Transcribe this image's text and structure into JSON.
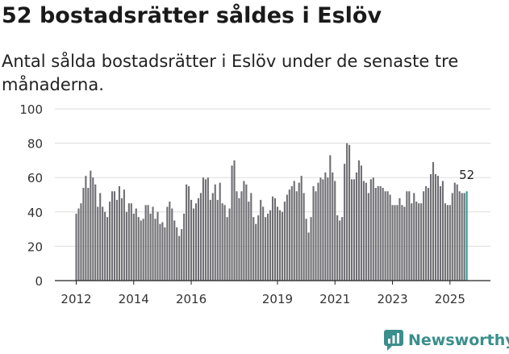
{
  "title": "52 bostadsrätter såldes i Eslöv",
  "subtitle": "Antal sålda bostadsrätter i Eslöv under de senaste tre månaderna.",
  "brand": {
    "name": "Newsworthy",
    "icon": "newsworthy-logo-icon",
    "color": "#3a8f8c"
  },
  "colors": {
    "bar": "#6e6e73",
    "highlight": "#2a9d96",
    "grid": "#dddddd",
    "axis": "#222222"
  },
  "chart_data": {
    "type": "bar",
    "title": "52 bostadsrätter såldes i Eslöv",
    "xlabel": "",
    "ylabel": "",
    "ylim": [
      0,
      100
    ],
    "yticks": [
      0,
      20,
      40,
      60,
      80,
      100
    ],
    "xtick_labels": [
      "2012",
      "2014",
      "2016",
      "2019",
      "2021",
      "2023",
      "2025"
    ],
    "xtick_years": [
      2012,
      2014,
      2016,
      2019,
      2021,
      2023,
      2025
    ],
    "start_year": 2012,
    "start_month": 1,
    "highlight_label": "52",
    "values": [
      39,
      42,
      45,
      54,
      61,
      54,
      64,
      60,
      56,
      43,
      51,
      43,
      40,
      37,
      46,
      52,
      52,
      47,
      55,
      48,
      53,
      40,
      45,
      45,
      39,
      42,
      37,
      35,
      36,
      44,
      44,
      39,
      43,
      36,
      40,
      33,
      34,
      31,
      43,
      46,
      42,
      35,
      31,
      26,
      30,
      39,
      56,
      55,
      47,
      42,
      45,
      48,
      51,
      60,
      59,
      60,
      47,
      51,
      56,
      47,
      57,
      45,
      44,
      37,
      42,
      67,
      70,
      52,
      48,
      52,
      58,
      56,
      46,
      51,
      37,
      33,
      38,
      47,
      43,
      37,
      39,
      41,
      49,
      48,
      43,
      41,
      40,
      46,
      50,
      53,
      55,
      58,
      52,
      57,
      61,
      51,
      36,
      28,
      37,
      55,
      52,
      57,
      60,
      59,
      63,
      60,
      73,
      63,
      58,
      38,
      35,
      37,
      68,
      80,
      79,
      59,
      59,
      63,
      70,
      67,
      58,
      57,
      51,
      59,
      60,
      54,
      55,
      55,
      54,
      52,
      52,
      50,
      44,
      44,
      44,
      48,
      44,
      43,
      52,
      52,
      45,
      51,
      46,
      45,
      45,
      52,
      55,
      54,
      62,
      69,
      62,
      61,
      55,
      58,
      45,
      44,
      44,
      51,
      57,
      56,
      52,
      51,
      51,
      52
    ]
  }
}
